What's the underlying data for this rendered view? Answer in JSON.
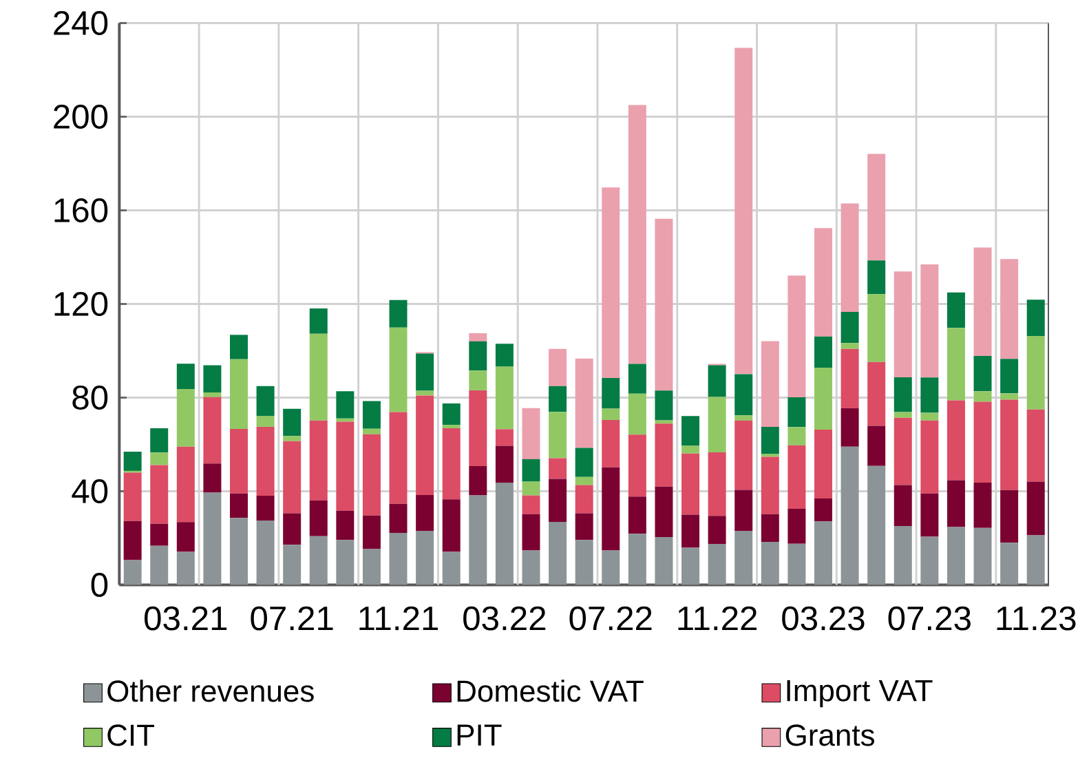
{
  "chart_data": {
    "type": "bar",
    "stacked": true,
    "categories": [
      null,
      null,
      "03.21",
      null,
      null,
      null,
      "07.21",
      null,
      null,
      null,
      "11.21",
      null,
      null,
      null,
      "03.22",
      null,
      null,
      null,
      "07.22",
      null,
      null,
      null,
      "11.22",
      null,
      null,
      null,
      "03.23",
      null,
      null,
      null,
      "07.23",
      null,
      null,
      null,
      "11.23"
    ],
    "series": [
      {
        "name": "Other revenues",
        "color": "#8c9498",
        "values": [
          10.6,
          16.7,
          14.1,
          39.4,
          28.6,
          27.5,
          17.1,
          20.8,
          19.2,
          15.3,
          22.2,
          23.1,
          14.1,
          38.2,
          43.7,
          14.7,
          26.9,
          19.2,
          14.7,
          21.8,
          20.4,
          15.9,
          17.5,
          23.1,
          18.4,
          17.6,
          27.1,
          59.0,
          50.8,
          25.1,
          20.6,
          24.7,
          24.3,
          18.0,
          21.2
        ]
      },
      {
        "name": "Domestic VAT",
        "color": "#7b0230",
        "values": [
          16.7,
          9.4,
          12.7,
          12.4,
          10.4,
          10.6,
          13.5,
          15.3,
          12.5,
          14.3,
          12.4,
          15.3,
          22.4,
          12.5,
          15.7,
          15.5,
          18.4,
          11.4,
          35.5,
          15.9,
          21.6,
          14.1,
          12.0,
          17.5,
          11.8,
          14.9,
          9.8,
          16.5,
          17.1,
          17.5,
          18.4,
          20.0,
          19.4,
          22.5,
          22.9
        ]
      },
      {
        "name": "Import VAT",
        "color": "#dc4c64",
        "values": [
          20.6,
          25.1,
          32.2,
          28.4,
          27.6,
          29.4,
          30.8,
          34.1,
          38.0,
          34.7,
          39.2,
          42.5,
          30.4,
          32.4,
          7.1,
          8.0,
          8.8,
          12.0,
          20.2,
          26.5,
          26.9,
          26.1,
          27.1,
          29.6,
          24.5,
          27.1,
          29.4,
          25.3,
          27.3,
          28.8,
          31.2,
          34.1,
          34.5,
          38.6,
          30.8
        ]
      },
      {
        "name": "CIT",
        "color": "#92c864",
        "values": [
          0.8,
          5.3,
          24.7,
          2.0,
          29.8,
          4.7,
          2.2,
          37.1,
          1.4,
          2.4,
          36.1,
          2.0,
          1.4,
          8.4,
          26.7,
          5.9,
          19.8,
          3.5,
          4.9,
          17.5,
          1.4,
          3.3,
          23.7,
          2.2,
          1.2,
          7.8,
          26.5,
          2.5,
          29.0,
          2.4,
          3.3,
          31.0,
          4.5,
          2.7,
          31.4
        ]
      },
      {
        "name": "PIT",
        "color": "#047c44",
        "values": [
          8.2,
          10.4,
          10.8,
          11.6,
          10.4,
          12.7,
          11.6,
          10.8,
          11.6,
          11.8,
          11.8,
          15.9,
          9.2,
          12.5,
          9.8,
          9.6,
          11.0,
          12.4,
          13.1,
          12.7,
          12.7,
          12.7,
          13.5,
          17.6,
          11.6,
          12.7,
          13.3,
          13.3,
          14.4,
          14.9,
          15.1,
          15.1,
          15.1,
          14.7,
          15.5
        ]
      },
      {
        "name": "Grants",
        "color": "#eba0ad",
        "values": [
          0,
          0,
          0,
          0,
          0,
          0,
          0,
          0,
          0,
          0,
          0,
          0.6,
          0,
          3.5,
          0,
          21.8,
          15.9,
          38.2,
          81.4,
          110.6,
          73.4,
          0,
          0.6,
          139.4,
          36.6,
          52.0,
          46.3,
          46.3,
          45.5,
          45.2,
          48.3,
          0,
          46.3,
          42.7,
          0
        ]
      }
    ],
    "ylim": [
      0,
      240
    ],
    "yticks": [
      0,
      40,
      80,
      120,
      160,
      200,
      240
    ],
    "grid": true,
    "legend": "bottom"
  }
}
